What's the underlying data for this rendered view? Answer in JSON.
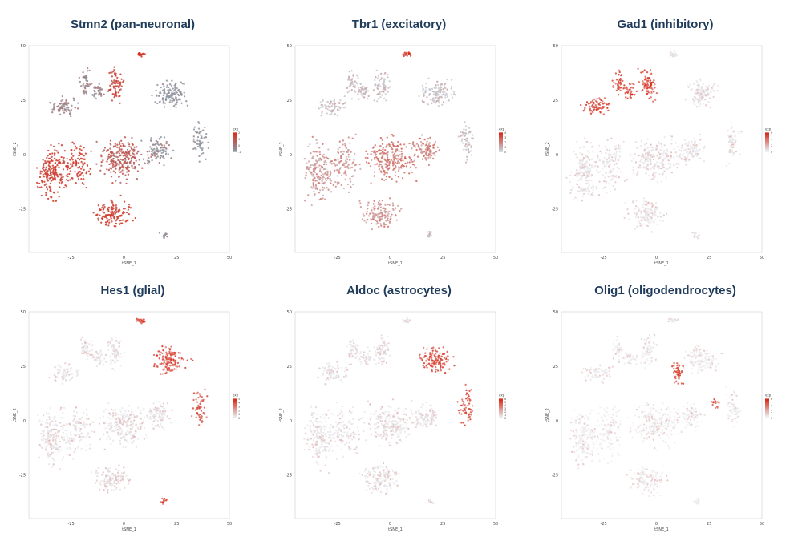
{
  "chart_data": [
    {
      "type": "scatter",
      "title": "Stmn2 (pan-neuronal)",
      "xlabel": "tSNE_1",
      "ylabel": "tSNE_2",
      "xlim": [
        -45,
        50
      ],
      "ylim": [
        -45,
        50
      ],
      "xticks": [
        "-25",
        "0",
        "25",
        "50"
      ],
      "yticks": [
        "50",
        "25",
        "0",
        "-25"
      ],
      "legend_title": "exp",
      "legend_ticks": [
        "2",
        "1",
        "0",
        "-1"
      ],
      "color_low": "#8c96a3",
      "color_high": "#d7301f",
      "expression_by_cluster": {
        "outer_left": 0.9,
        "left_top": 0.2,
        "top_left": 0.2,
        "top_center": 0.8,
        "top_right": 0.0,
        "top_tiny": 0.95,
        "center": 0.6,
        "center_right": 0.1,
        "right_lobe": 0.0,
        "bottom": 0.9,
        "bottom_small": 0.1
      }
    },
    {
      "type": "scatter",
      "title": "Tbr1 (excitatory)",
      "xlabel": "tSNE_1",
      "ylabel": "tSNE_2",
      "xlim": [
        -45,
        50
      ],
      "ylim": [
        -45,
        50
      ],
      "xticks": [
        "-25",
        "0",
        "25",
        "50"
      ],
      "yticks": [
        "50",
        "25",
        "0",
        "-25"
      ],
      "legend_title": "exp",
      "legend_ticks": [
        "4",
        "3",
        "2",
        "1",
        "0"
      ],
      "color_low": "#c7ccd3",
      "color_high": "#d7301f",
      "expression_by_cluster": {
        "outer_left": 0.35,
        "left_top": 0.05,
        "top_left": 0.05,
        "top_center": 0.05,
        "top_right": 0.05,
        "top_tiny": 0.9,
        "center": 0.55,
        "center_right": 0.5,
        "right_lobe": 0.05,
        "bottom": 0.4,
        "bottom_small": 0.05
      }
    },
    {
      "type": "scatter",
      "title": "Gad1 (inhibitory)",
      "xlabel": "tSNE_1",
      "ylabel": "tSNE_2",
      "xlim": [
        -45,
        50
      ],
      "ylim": [
        -45,
        50
      ],
      "xticks": [
        "-25",
        "0",
        "25",
        "50"
      ],
      "yticks": [
        "50",
        "25",
        "0",
        "-25"
      ],
      "legend_title": "exp",
      "legend_ticks": [
        "6",
        "4",
        "2",
        "0"
      ],
      "color_low": "#e6e8ec",
      "color_high": "#d7301f",
      "expression_by_cluster": {
        "outer_left": 0.02,
        "left_top": 0.85,
        "top_left": 0.85,
        "top_center": 0.8,
        "top_right": 0.02,
        "top_tiny": 0.0,
        "center": 0.02,
        "center_right": 0.02,
        "right_lobe": 0.02,
        "bottom": 0.02,
        "bottom_small": 0.02
      }
    },
    {
      "type": "scatter",
      "title": "Hes1 (glial)",
      "xlabel": "tSNE_1",
      "ylabel": "tSNE_2",
      "xlim": [
        -45,
        50
      ],
      "ylim": [
        -45,
        50
      ],
      "xticks": [
        "-25",
        "0",
        "25",
        "50"
      ],
      "yticks": [
        "50",
        "25",
        "0",
        "-25"
      ],
      "legend_title": "exp",
      "legend_ticks": [
        "5",
        "4",
        "3",
        "2",
        "1",
        "0"
      ],
      "color_low": "#e6e8ec",
      "color_high": "#d7301f",
      "expression_by_cluster": {
        "outer_left": 0.02,
        "left_top": 0.02,
        "top_left": 0.02,
        "top_center": 0.02,
        "top_right": 0.8,
        "top_tiny": 0.9,
        "center": 0.02,
        "center_right": 0.02,
        "right_lobe": 0.75,
        "bottom": 0.02,
        "bottom_small": 0.8
      }
    },
    {
      "type": "scatter",
      "title": "Aldoc (astrocytes)",
      "xlabel": "tSNE_1",
      "ylabel": "tSNE_2",
      "xlim": [
        -45,
        50
      ],
      "ylim": [
        -45,
        50
      ],
      "xticks": [
        "-25",
        "0",
        "25",
        "50"
      ],
      "yticks": [
        "50",
        "25",
        "0",
        "-25"
      ],
      "legend_title": "exp",
      "legend_ticks": [
        "6",
        "5",
        "4",
        "3",
        "2",
        "1",
        "0"
      ],
      "color_low": "#e6e8ec",
      "color_high": "#d7301f",
      "expression_by_cluster": {
        "outer_left": 0.02,
        "left_top": 0.02,
        "top_left": 0.02,
        "top_center": 0.02,
        "top_right": 0.85,
        "top_tiny": 0.02,
        "center": 0.02,
        "center_right": 0.02,
        "right_lobe": 0.85,
        "bottom": 0.02,
        "bottom_small": 0.02
      }
    },
    {
      "type": "scatter",
      "title": "Olig1 (oligodendrocytes)",
      "xlabel": "tSNE_1",
      "ylabel": "tSNE_2",
      "xlim": [
        -45,
        50
      ],
      "ylim": [
        -45,
        50
      ],
      "xticks": [
        "-25",
        "0",
        "25",
        "50"
      ],
      "yticks": [
        "50",
        "25",
        "0",
        "-25"
      ],
      "legend_title": "exp",
      "legend_ticks": [
        "6",
        "4",
        "2",
        "0"
      ],
      "color_low": "#eceef1",
      "color_high": "#d7301f",
      "expression_by_cluster": {
        "outer_left": 0.0,
        "left_top": 0.0,
        "top_left": 0.0,
        "top_center": 0.0,
        "top_right": 0.0,
        "top_tiny": 0.0,
        "center": 0.0,
        "center_right": 0.0,
        "right_lobe": 0.0,
        "olig_patch": 0.9,
        "olig_small": 0.8,
        "bottom": 0.0,
        "bottom_small": 0.0
      }
    }
  ]
}
